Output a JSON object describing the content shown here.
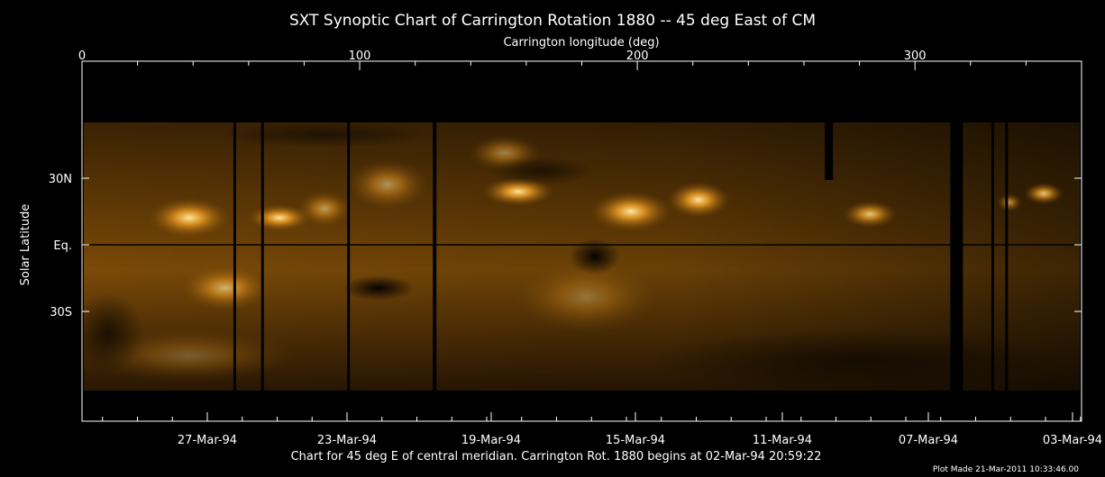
{
  "chart_data": {
    "type": "heatmap",
    "title": "SXT Synoptic Chart of Carrington Rotation 1880 -- 45 deg East of CM",
    "top_axis": {
      "label": "Carrington longitude (deg)",
      "range": [
        0,
        360
      ],
      "ticks": [
        0,
        100,
        200,
        300
      ],
      "tick_labels": [
        "0",
        "100",
        "200",
        "300"
      ]
    },
    "left_axis": {
      "label": "Solar Latitude",
      "ticks": [
        30,
        0,
        -30
      ],
      "tick_labels": [
        "30N",
        "Eq.",
        "30S"
      ]
    },
    "bottom_axis": {
      "tick_labels": [
        "27-Mar-94",
        "23-Mar-94",
        "19-Mar-94",
        "15-Mar-94",
        "11-Mar-94",
        "07-Mar-94",
        "03-Mar-94"
      ]
    },
    "image_description_colormap": "orange-gold intensity on black",
    "data_gaps_longitude_deg": [
      55,
      65,
      96,
      127,
      269,
      315,
      328,
      333
    ],
    "footer": "Chart for 45 deg E of central meridian.  Carrington Rot. 1880 begins at 02-Mar-94 20:59:22",
    "plot_made": "Plot Made 21-Mar-2011 10:33:46.00"
  },
  "colors": {
    "background": "#000000",
    "text": "#ffffff",
    "map_hot": "#ffd27a",
    "map_mid": "#8a5206"
  }
}
